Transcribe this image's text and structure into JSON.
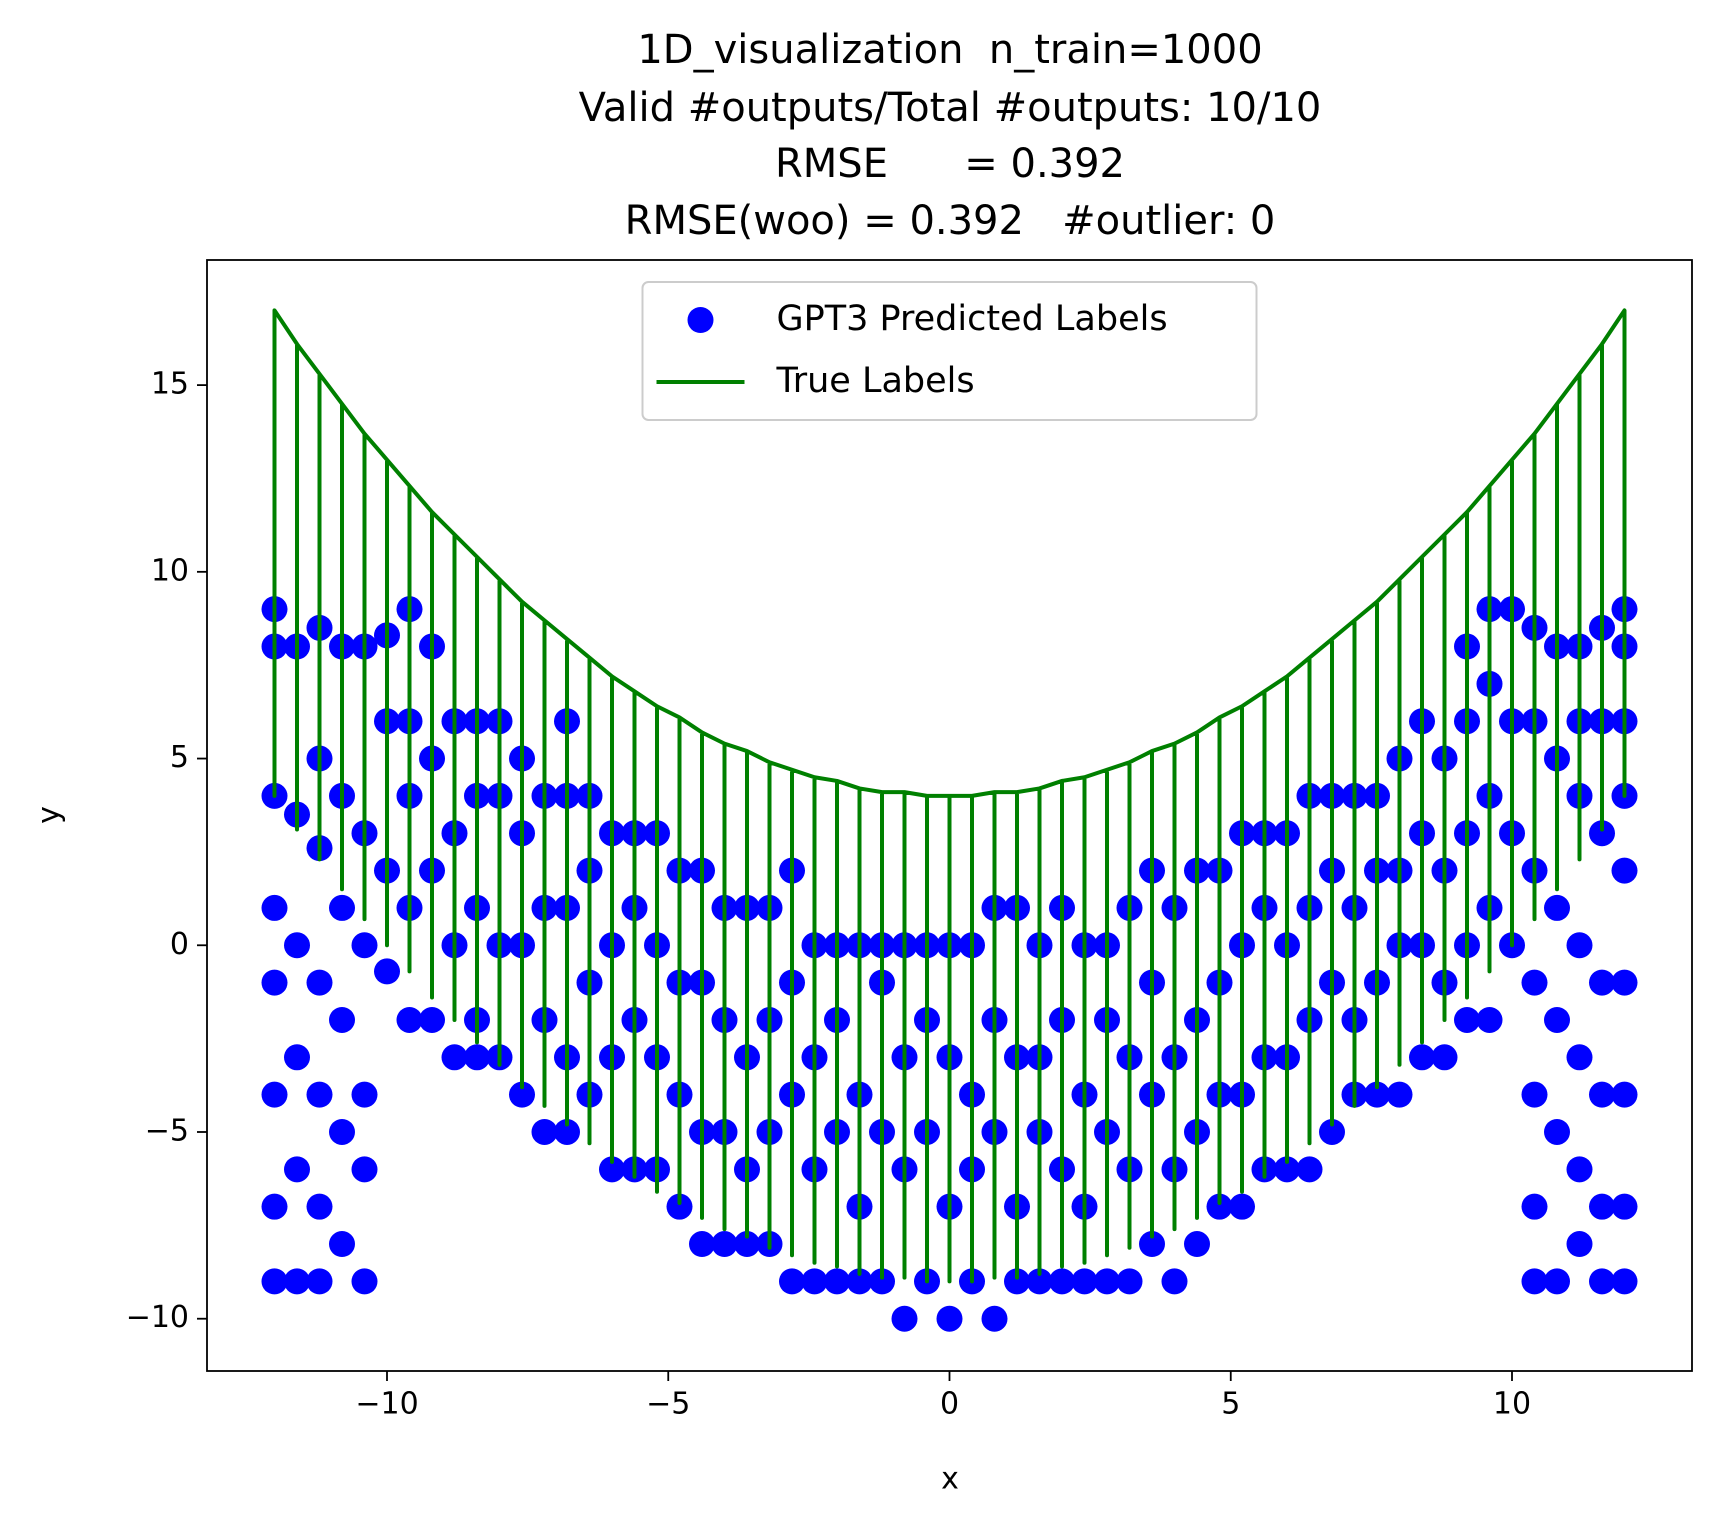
{
  "chart_data": {
    "type": "scatter",
    "title": "1D_visualization  n_train=1000",
    "subtitles": [
      "Valid #outputs/Total #outputs: 10/10",
      "RMSE      = 0.392",
      "RMSE(woo) = 0.392   #outlier: 0"
    ],
    "x_label": "x",
    "y_label": "y",
    "xlim": [
      -13.2,
      13.2
    ],
    "ylim": [
      -11.4,
      18.35
    ],
    "xticks": [
      {
        "value": -10,
        "label": "−10"
      },
      {
        "value": -5,
        "label": "−5"
      },
      0,
      5,
      10
    ],
    "yticks": [
      {
        "value": -10,
        "label": "−10"
      },
      {
        "value": -5,
        "label": "−5"
      },
      0,
      5,
      10,
      15
    ],
    "legend": "upper center",
    "series": [
      {
        "name": "GPT3 Predicted Labels",
        "type": "scatter",
        "color": "#0000ff",
        "x": [
          -12,
          -12,
          -12,
          -12,
          -12,
          -12,
          -12,
          -12,
          -11.6,
          -11.6,
          -11.6,
          -11.6,
          -11.6,
          -11.6,
          -11.2,
          -11.2,
          -11.2,
          -11.2,
          -11.2,
          -11.2,
          -11.2,
          -10.8,
          -10.8,
          -10.8,
          -10.8,
          -10.8,
          -10.8,
          -10.4,
          -10.4,
          -10.4,
          -10.4,
          -10.4,
          -10.4,
          -10,
          -10,
          -10,
          -10,
          -9.6,
          -9.6,
          -9.6,
          -9.6,
          -9.6,
          -9.2,
          -9.2,
          -9.2,
          -9.2,
          -8.8,
          -8.8,
          -8.8,
          -8.8,
          -8.4,
          -8.4,
          -8.4,
          -8.4,
          -8.4,
          -8,
          -8,
          -8,
          -8,
          -7.6,
          -7.6,
          -7.6,
          -7.6,
          -7.2,
          -7.2,
          -7.2,
          -7.2,
          -6.8,
          -6.8,
          -6.8,
          -6.8,
          -6.8,
          -6.4,
          -6.4,
          -6.4,
          -6.4,
          -6,
          -6,
          -6,
          -6,
          -5.6,
          -5.6,
          -5.6,
          -5.6,
          -5.2,
          -5.2,
          -5.2,
          -5.2,
          -4.8,
          -4.8,
          -4.8,
          -4.8,
          -4.4,
          -4.4,
          -4.4,
          -4.4,
          -4,
          -4,
          -4,
          -4,
          -3.6,
          -3.6,
          -3.6,
          -3.6,
          -3.2,
          -3.2,
          -3.2,
          -3.2,
          -2.8,
          -2.8,
          -2.8,
          -2.8,
          -2.4,
          -2.4,
          -2.4,
          -2.4,
          -2,
          -2,
          -2,
          -2,
          -1.6,
          -1.6,
          -1.6,
          -1.6,
          -1.2,
          -1.2,
          -1.2,
          -1.2,
          -0.8,
          -0.8,
          -0.8,
          -0.8,
          -0.4,
          -0.4,
          -0.4,
          -0.4,
          0,
          0,
          0,
          0,
          0.4,
          0.4,
          0.4,
          0.4,
          0.8,
          0.8,
          0.8,
          0.8,
          1.2,
          1.2,
          1.2,
          1.2,
          1.6,
          1.6,
          1.6,
          1.6,
          2,
          2,
          2,
          2,
          2.4,
          2.4,
          2.4,
          2.4,
          2.8,
          2.8,
          2.8,
          2.8,
          3.2,
          3.2,
          3.2,
          3.2,
          3.6,
          3.6,
          3.6,
          3.6,
          4,
          4,
          4,
          4,
          4.4,
          4.4,
          4.4,
          4.4,
          4.8,
          4.8,
          4.8,
          4.8,
          5.2,
          5.2,
          5.2,
          5.2,
          5.6,
          5.6,
          5.6,
          5.6,
          6,
          6,
          6,
          6,
          6.4,
          6.4,
          6.4,
          6.4,
          6.8,
          6.8,
          6.8,
          6.8,
          7.2,
          7.2,
          7.2,
          7.2,
          7.6,
          7.6,
          7.6,
          7.6,
          8,
          8,
          8,
          8,
          8.4,
          8.4,
          8.4,
          8.4,
          8.8,
          8.8,
          8.8,
          8.8,
          9.2,
          9.2,
          9.2,
          9.2,
          9.2,
          9.6,
          9.6,
          9.6,
          9.6,
          9.6,
          10,
          10,
          10,
          10,
          10.4,
          10.4,
          10.4,
          10.4,
          10.4,
          10.4,
          10.4,
          10.8,
          10.8,
          10.8,
          10.8,
          10.8,
          10.8,
          11.2,
          11.2,
          11.2,
          11.2,
          11.2,
          11.2,
          11.2,
          11.6,
          11.6,
          11.6,
          11.6,
          11.6,
          11.6,
          11.6,
          12,
          12,
          12,
          12,
          12,
          12,
          12,
          12,
          12
        ],
        "values": [
          9,
          8,
          4,
          1,
          -1,
          -4,
          -7,
          -9,
          8,
          3.5,
          0,
          -3,
          -6,
          -9,
          8.5,
          5,
          2.6,
          -1,
          -4,
          -7,
          -9,
          8,
          4,
          1,
          -2,
          -5,
          -8,
          8,
          3,
          0,
          -4,
          -6,
          -9,
          8.3,
          6,
          2,
          -0.7,
          9,
          6,
          4,
          1,
          -2,
          8,
          5,
          2,
          -2,
          6,
          3,
          0,
          -3,
          6,
          4,
          1,
          -2,
          -3,
          6,
          4,
          0,
          -3,
          5,
          3,
          0,
          -4,
          4,
          1,
          -2,
          -5,
          6,
          4,
          1,
          -3,
          -5,
          4,
          2,
          -1,
          -4,
          3,
          0,
          -3,
          -6,
          3,
          1,
          -2,
          -6,
          3,
          0,
          -3,
          -6,
          2,
          -1,
          -4,
          -7,
          2,
          -1,
          -5,
          -8,
          1,
          -2,
          -5,
          -8,
          1,
          -3,
          -6,
          -8,
          1,
          -2,
          -5,
          -8,
          2,
          -1,
          -4,
          -9,
          0,
          -3,
          -6,
          -9,
          0,
          -2,
          -5,
          -9,
          0,
          -4,
          -7,
          -9,
          0,
          -1,
          -5,
          -9,
          0,
          -3,
          -6,
          -10,
          0,
          -2,
          -5,
          -9,
          0,
          -3,
          -7,
          -10,
          0,
          -4,
          -6,
          -9,
          1,
          -2,
          -5,
          -10,
          1,
          -3,
          -7,
          -9,
          0,
          -3,
          -5,
          -9,
          1,
          -2,
          -6,
          -9,
          0,
          -4,
          -7,
          -9,
          0,
          -2,
          -5,
          -9,
          1,
          -3,
          -6,
          -9,
          2,
          -1,
          -4,
          -8,
          1,
          -3,
          -6,
          -9,
          2,
          -2,
          -5,
          -8,
          2,
          -1,
          -4,
          -7,
          3,
          0,
          -4,
          -7,
          3,
          1,
          -3,
          -6,
          3,
          0,
          -3,
          -6,
          4,
          1,
          -2,
          -6,
          4,
          2,
          -1,
          -5,
          4,
          1,
          -2,
          -4,
          4,
          2,
          -1,
          -4,
          5,
          2,
          0,
          -4,
          6,
          3,
          0,
          -3,
          5,
          2,
          -1,
          -3,
          8,
          6,
          3,
          0,
          -2,
          9,
          7,
          4,
          1,
          -2,
          9,
          6,
          3,
          0,
          8.5,
          6,
          2,
          -1,
          -4,
          -7,
          -9,
          8,
          5,
          1,
          -2,
          -5,
          -9,
          8,
          6,
          4,
          0,
          -3,
          -6,
          -8,
          8.5,
          6,
          3,
          -1,
          -4,
          -7,
          -9,
          9,
          8,
          6,
          4,
          2,
          -1,
          -4,
          -7,
          -9
        ]
      },
      {
        "name": "True Labels",
        "type": "line",
        "color": "#008000",
        "x": [
          -12,
          -12,
          -12,
          -11.6,
          -11.6,
          -11.6,
          -11.2,
          -11.2,
          -11.2,
          -10.8,
          -10.8,
          -10.8,
          -10.4,
          -10.4,
          -10.4,
          -10,
          -10,
          -10,
          -9.6,
          -9.6,
          -9.6,
          -9.2,
          -9.2,
          -9.2,
          -8.8,
          -8.8,
          -8.8,
          -8.4,
          -8.4,
          -8.4,
          -8,
          -8,
          -8,
          -7.6,
          -7.6,
          -7.6,
          -7.2,
          -7.2,
          -7.2,
          -6.8,
          -6.8,
          -6.8,
          -6.4,
          -6.4,
          -6.4,
          -6,
          -6,
          -6,
          -5.6,
          -5.6,
          -5.6,
          -5.2,
          -5.2,
          -5.2,
          -4.8,
          -4.8,
          -4.8,
          -4.4,
          -4.4,
          -4.4,
          -4,
          -4,
          -4,
          -3.6,
          -3.6,
          -3.6,
          -3.2,
          -3.2,
          -3.2,
          -2.8,
          -2.8,
          -2.8,
          -2.4,
          -2.4,
          -2.4,
          -2,
          -2,
          -2,
          -1.6,
          -1.6,
          -1.6,
          -1.2,
          -1.2,
          -1.2,
          -0.8,
          -0.8,
          -0.8,
          -0.4,
          -0.4,
          -0.4,
          0,
          0,
          0,
          0.4,
          0.4,
          0.4,
          0.8,
          0.8,
          0.8,
          1.2,
          1.2,
          1.2,
          1.6,
          1.6,
          1.6,
          2,
          2,
          2,
          2.4,
          2.4,
          2.4,
          2.8,
          2.8,
          2.8,
          3.2,
          3.2,
          3.2,
          3.6,
          3.6,
          3.6,
          4,
          4,
          4,
          4.4,
          4.4,
          4.4,
          4.8,
          4.8,
          4.8,
          5.2,
          5.2,
          5.2,
          5.6,
          5.6,
          5.6,
          6,
          6,
          6,
          6.4,
          6.4,
          6.4,
          6.8,
          6.8,
          6.8,
          7.2,
          7.2,
          7.2,
          7.6,
          7.6,
          7.6,
          8,
          8,
          8,
          8.4,
          8.4,
          8.4,
          8.8,
          8.8,
          8.8,
          9.2,
          9.2,
          9.2,
          9.6,
          9.6,
          9.6,
          10,
          10,
          10,
          10.4,
          10.4,
          10.4,
          10.8,
          10.8,
          10.8,
          11.2,
          11.2,
          11.2,
          11.6,
          11.6,
          11.6,
          12,
          12,
          12
        ],
        "values": [
          17,
          4,
          17,
          16.1,
          3.1,
          16.1,
          15.3,
          2.3,
          15.3,
          14.5,
          1.5,
          14.5,
          13.7,
          0.7,
          13.7,
          13,
          0,
          13,
          12.3,
          -0.7,
          12.3,
          11.6,
          -1.4,
          11.6,
          11,
          -2,
          11,
          10.4,
          -2.6,
          10.4,
          9.8,
          -3.2,
          9.8,
          9.2,
          -3.8,
          9.2,
          8.7,
          -4.3,
          8.7,
          8.2,
          -4.8,
          8.2,
          7.7,
          -5.3,
          7.7,
          7.2,
          -5.8,
          7.2,
          6.8,
          -6.2,
          6.8,
          6.4,
          -6.6,
          6.4,
          6.1,
          -6.9,
          6.1,
          5.7,
          -7.3,
          5.7,
          5.4,
          -7.6,
          5.4,
          5.2,
          -7.8,
          5.2,
          4.9,
          -8.1,
          4.9,
          4.7,
          -8.3,
          4.7,
          4.5,
          -8.5,
          4.5,
          4.4,
          -8.6,
          4.4,
          4.2,
          -8.8,
          4.2,
          4.1,
          -8.9,
          4.1,
          4.1,
          -8.9,
          4.1,
          4,
          -9,
          4,
          4,
          -9,
          4,
          4,
          -9,
          4,
          4.1,
          -8.9,
          4.1,
          4.1,
          -8.9,
          4.1,
          4.2,
          -8.8,
          4.2,
          4.4,
          -8.6,
          4.4,
          4.5,
          -8.5,
          4.5,
          4.7,
          -8.3,
          4.7,
          4.9,
          -8.1,
          4.9,
          5.2,
          -7.8,
          5.2,
          5.4,
          -7.6,
          5.4,
          5.7,
          -7.3,
          5.7,
          6.1,
          -6.9,
          6.1,
          6.4,
          -6.6,
          6.4,
          6.8,
          -6.2,
          6.8,
          7.2,
          -5.8,
          7.2,
          7.7,
          -5.3,
          7.7,
          8.2,
          -4.8,
          8.2,
          8.7,
          -4.3,
          8.7,
          9.2,
          -3.8,
          9.2,
          9.8,
          -3.2,
          9.8,
          10.4,
          -2.6,
          10.4,
          11,
          -2,
          11,
          11.6,
          -1.4,
          11.6,
          12.3,
          -0.7,
          12.3,
          13,
          0,
          13,
          13.7,
          0.7,
          13.7,
          14.5,
          1.5,
          14.5,
          15.3,
          2.3,
          15.3,
          16.1,
          3.1,
          16.1,
          17,
          4,
          17
        ]
      }
    ]
  }
}
